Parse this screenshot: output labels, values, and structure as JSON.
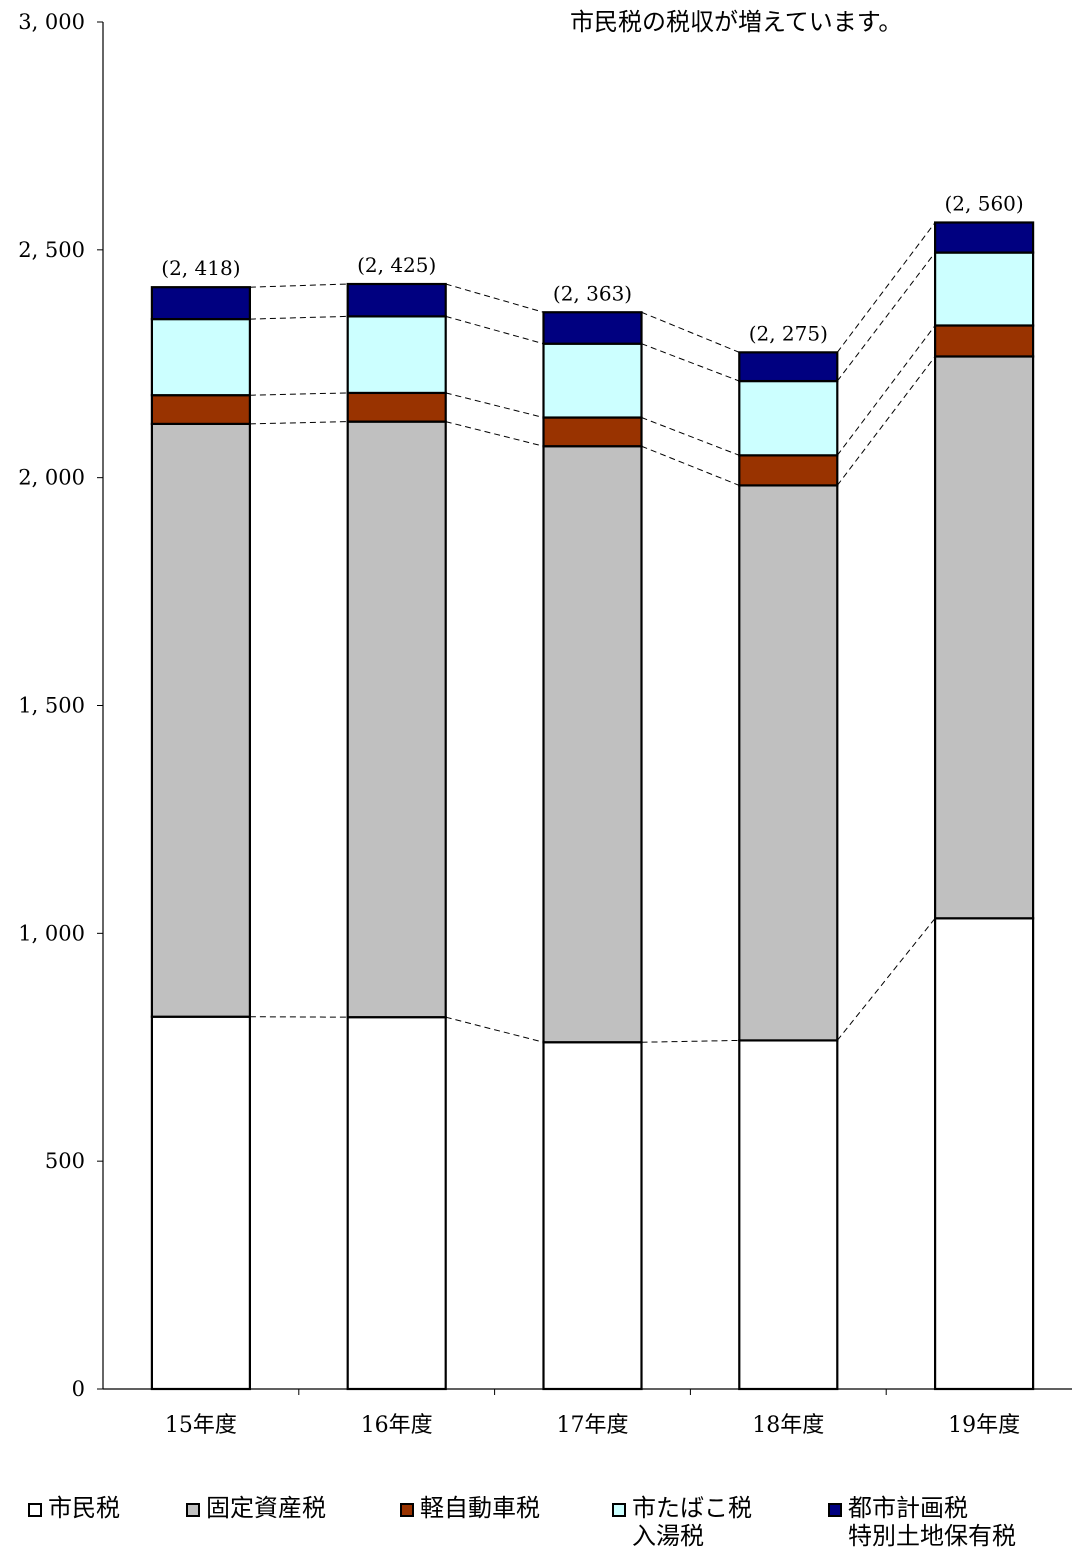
{
  "chart_data": {
    "type": "bar",
    "stacked": true,
    "title": "市民税の税収が増えています。",
    "categories": [
      "15年度",
      "16年度",
      "17年度",
      "18年度",
      "19年度"
    ],
    "totals": [
      "(2, 418)",
      "(2, 425)",
      "(2, 363)",
      "(2, 275)",
      "(2, 560)"
    ],
    "ylim": [
      0,
      3000
    ],
    "yticks": [
      {
        "value": 0,
        "label": "0"
      },
      {
        "value": 500,
        "label": "500"
      },
      {
        "value": 1000,
        "label": "1, 000"
      },
      {
        "value": 1500,
        "label": "1, 500"
      },
      {
        "value": 2000,
        "label": "2, 000"
      },
      {
        "value": 2500,
        "label": "2, 500"
      },
      {
        "value": 3000,
        "label": "3, 000"
      }
    ],
    "grid": false,
    "legend_position": "bottom",
    "series": [
      {
        "name": "市民税",
        "label_lines": [
          "市民税"
        ],
        "color": "#ffffff",
        "values": [
          817,
          816,
          761,
          765,
          1033
        ]
      },
      {
        "name": "固定資産税",
        "label_lines": [
          "固定資産税"
        ],
        "color": "#c0c0c0",
        "values": [
          1301,
          1307,
          1308,
          1218,
          1233
        ]
      },
      {
        "name": "軽自動車税",
        "label_lines": [
          "軽自動車税"
        ],
        "color": "#993300",
        "values": [
          63,
          63,
          63,
          66,
          68
        ]
      },
      {
        "name": "市たばこ税 入湯税",
        "label_lines": [
          "市たばこ税",
          "入湯税"
        ],
        "color": "#ccffff",
        "values": [
          167,
          168,
          162,
          163,
          160
        ]
      },
      {
        "name": "都市計画税 特別土地保有税",
        "label_lines": [
          "都市計画税",
          "特別土地保有税"
        ],
        "color": "#000080",
        "values": [
          70,
          71,
          69,
          63,
          66
        ]
      }
    ]
  }
}
